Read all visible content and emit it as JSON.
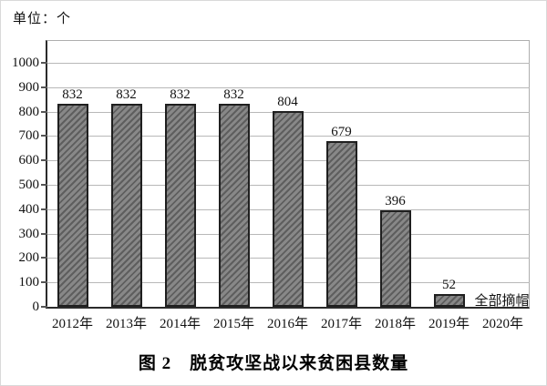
{
  "unit_label": "单位：个",
  "figure_caption": "图 2　脱贫攻坚战以来贫困县数量",
  "chart_data": {
    "type": "bar",
    "title": "图 2　脱贫攻坚战以来贫困县数量",
    "unit": "单位：个",
    "categories": [
      "2012年",
      "2013年",
      "2014年",
      "2015年",
      "2016年",
      "2017年",
      "2018年",
      "2019年",
      "2020年"
    ],
    "values": [
      832,
      832,
      832,
      832,
      804,
      679,
      396,
      52,
      null
    ],
    "annotations": [
      {
        "category": "2020年",
        "text": "全部摘帽"
      }
    ],
    "xlabel": "",
    "ylabel": "",
    "ylim": [
      0,
      1000
    ],
    "ytick_step": 100,
    "yticks": [
      0,
      100,
      200,
      300,
      400,
      500,
      600,
      700,
      800,
      900,
      1000
    ],
    "grid": true,
    "legend_position": "none",
    "bar_style": {
      "fill": "#757575",
      "pattern": "diagonal-hatch",
      "stripe": "#5e5e5e",
      "border": "#1f1f1f"
    }
  },
  "colors": {
    "background": "#ffffff",
    "axis": "#2b2b2b",
    "gridline": "#b8b8b8",
    "plot_border": "#aeaeae",
    "text": "#111111",
    "frame_border": "#d9d9d9"
  }
}
